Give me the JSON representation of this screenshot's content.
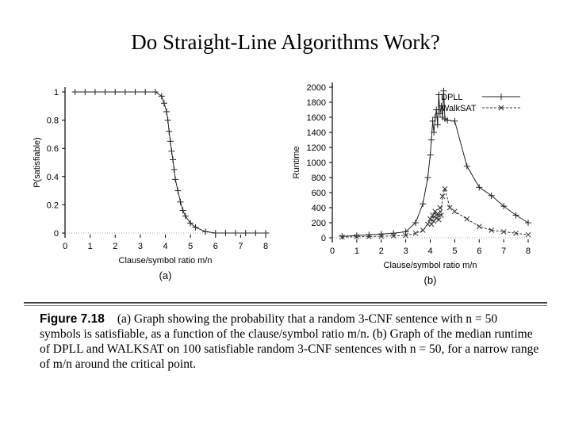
{
  "slide": {
    "title": "Do Straight-Line Algorithms Work?"
  },
  "caption": {
    "figure_label": "Figure 7.18",
    "text": "(a) Graph showing the probability that a random 3-CNF sentence with n = 50 symbols is satisfiable, as a function of the clause/symbol ratio m/n. (b) Graph of the median runtime of DPLL and WALKSAT on 100 satisfiable random 3-CNF sentences with n = 50, for a narrow range of m/n around the critical point."
  },
  "colors": {
    "ink": "#000000",
    "dpll": "#222222",
    "walksat": "#333333",
    "grid": "#888888"
  },
  "chart_data": [
    {
      "id": "a",
      "type": "line",
      "panel_label": "(a)",
      "xlabel": "Clause/symbol ratio m/n",
      "ylabel": "P(satisfiable)",
      "xlim": [
        0,
        8
      ],
      "ylim": [
        0,
        1
      ],
      "xticks": [
        "0",
        "1",
        "2",
        "3",
        "4",
        "5",
        "6",
        "7",
        "8"
      ],
      "yticks": [
        "0",
        "0.2",
        "0.4",
        "0.6",
        "0.8",
        "1"
      ],
      "ytick_values": [
        0,
        0.2,
        0.4,
        0.6,
        0.8,
        1
      ],
      "grid": false,
      "series": [
        {
          "marker": "plus",
          "x": [
            0.4,
            0.8,
            1.2,
            1.6,
            2.0,
            2.4,
            2.8,
            3.2,
            3.6,
            3.85,
            3.95,
            4.05,
            4.1,
            4.15,
            4.2,
            4.25,
            4.3,
            4.35,
            4.4,
            4.5,
            4.6,
            4.7,
            4.8,
            5.0,
            5.2,
            5.6,
            6.0,
            6.4,
            6.8,
            7.2,
            7.6,
            8.0
          ],
          "y": [
            1.0,
            1.0,
            1.0,
            1.0,
            1.0,
            1.0,
            1.0,
            1.0,
            1.0,
            0.97,
            0.92,
            0.86,
            0.8,
            0.72,
            0.65,
            0.58,
            0.52,
            0.45,
            0.38,
            0.3,
            0.22,
            0.16,
            0.12,
            0.07,
            0.04,
            0.01,
            0.0,
            0.0,
            0.0,
            0.0,
            0.0,
            0.0
          ]
        }
      ]
    },
    {
      "id": "b",
      "type": "line",
      "panel_label": "(b)",
      "xlabel": "Clause/symbol ratio m/n",
      "ylabel": "Runtime",
      "xlim": [
        0,
        8
      ],
      "ylim": [
        0,
        2000
      ],
      "xticks": [
        "0",
        "1",
        "2",
        "3",
        "4",
        "5",
        "6",
        "7",
        "8"
      ],
      "yticks": [
        "0",
        "200",
        "400",
        "600",
        "800",
        "1000",
        "1200",
        "1400",
        "1600",
        "1800",
        "2000"
      ],
      "ytick_values": [
        0,
        200,
        400,
        600,
        800,
        1000,
        1200,
        1400,
        1600,
        1800,
        2000
      ],
      "grid": false,
      "legend_position": "top-right",
      "series": [
        {
          "name": "DPLL",
          "marker": "plus",
          "x": [
            0.4,
            1.0,
            1.5,
            2.0,
            2.5,
            3.0,
            3.4,
            3.7,
            3.9,
            4.0,
            4.05,
            4.1,
            4.15,
            4.2,
            4.25,
            4.3,
            4.35,
            4.4,
            4.45,
            4.5,
            4.55,
            4.6,
            4.7,
            5.0,
            5.5,
            6.0,
            6.5,
            7.0,
            7.5,
            8.0
          ],
          "y": [
            20,
            30,
            40,
            50,
            60,
            80,
            200,
            450,
            800,
            1100,
            1300,
            1550,
            1400,
            1600,
            1700,
            1500,
            1900,
            1650,
            1750,
            1600,
            1950,
            1580,
            1560,
            1550,
            950,
            670,
            560,
            420,
            300,
            200
          ]
        },
        {
          "name": "WalkSAT",
          "marker": "cross",
          "x": [
            0.4,
            1.0,
            1.5,
            2.0,
            2.5,
            3.0,
            3.4,
            3.7,
            3.9,
            4.0,
            4.05,
            4.1,
            4.15,
            4.2,
            4.25,
            4.3,
            4.35,
            4.4,
            4.45,
            4.5,
            4.6,
            4.8,
            5.0,
            5.5,
            6.0,
            6.5,
            7.0,
            7.5,
            8.0
          ],
          "y": [
            10,
            15,
            15,
            20,
            25,
            30,
            60,
            100,
            180,
            250,
            180,
            300,
            220,
            350,
            260,
            320,
            240,
            400,
            300,
            550,
            650,
            400,
            350,
            250,
            150,
            100,
            80,
            60,
            40
          ]
        }
      ]
    }
  ]
}
